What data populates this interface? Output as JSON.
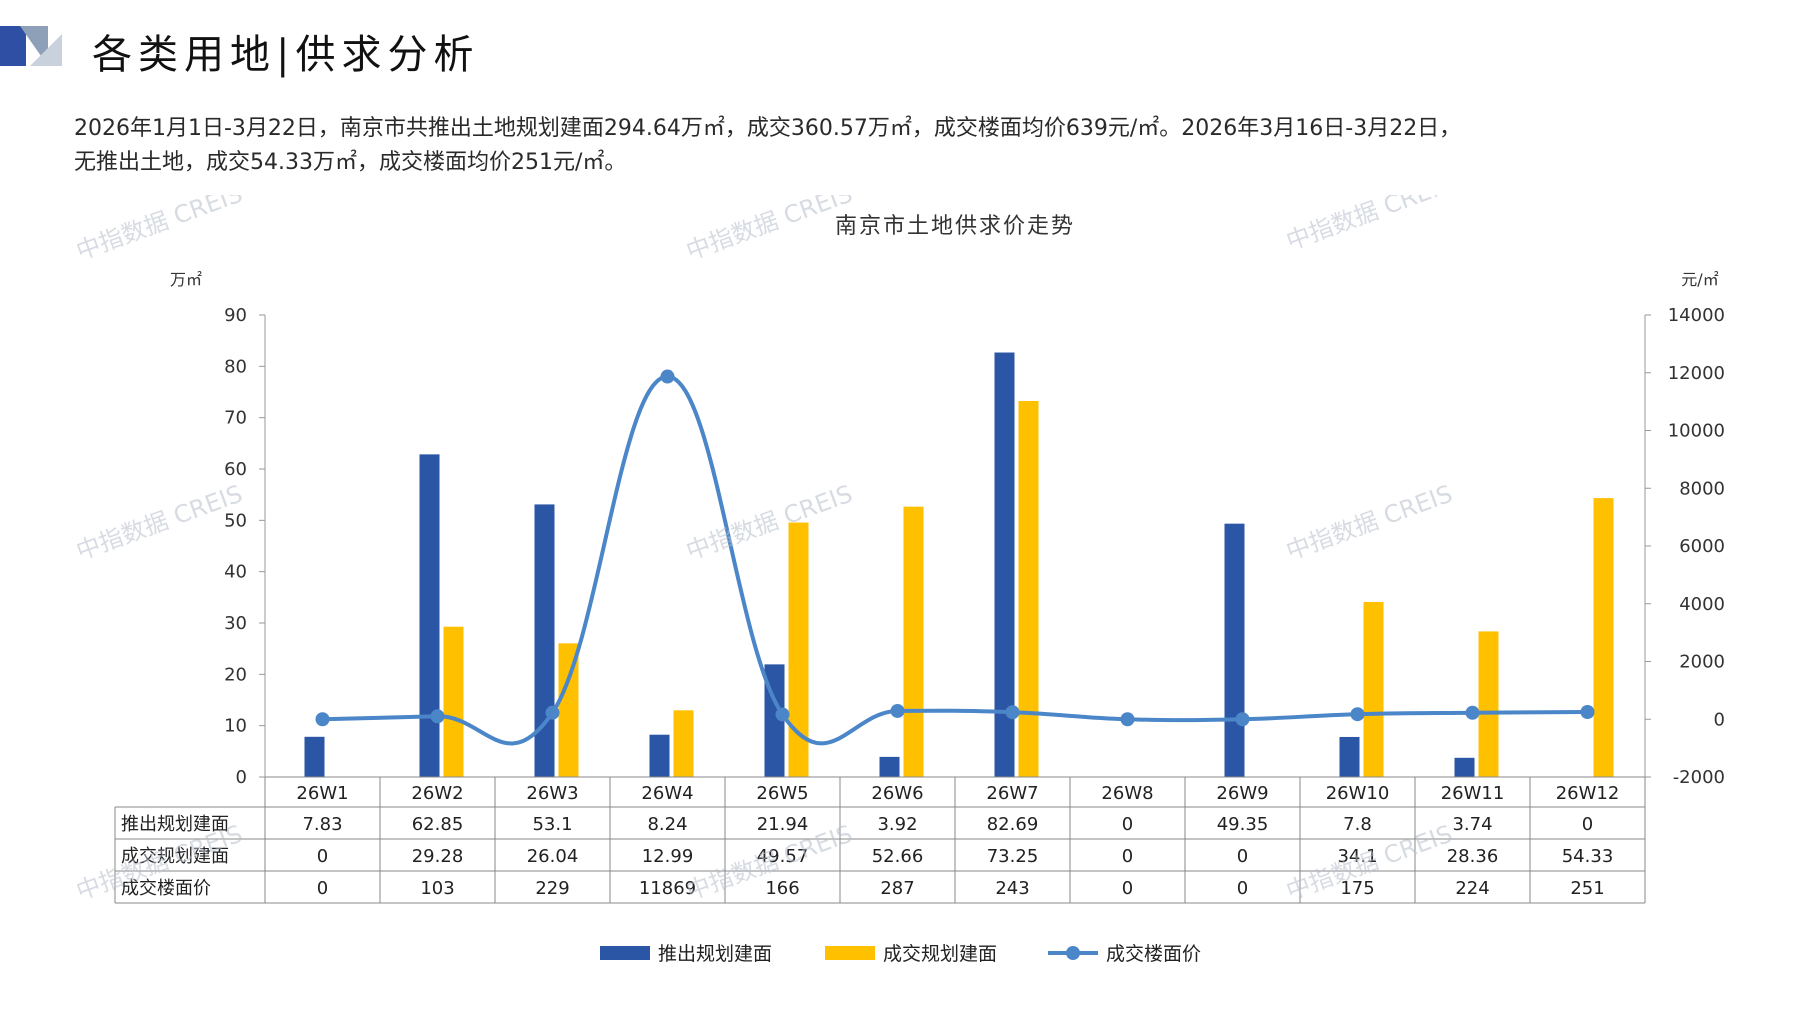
{
  "page": {
    "title": "各类用地|供求分析",
    "summary_line1": "2026年1月1日-3月22日，南京市共推出土地规划建面294.64万㎡，成交360.57万㎡，成交楼面均价639元/㎡。2026年3月16日-3月22日，",
    "summary_line2": "无推出土地，成交54.33万㎡，成交楼面均价251元/㎡。",
    "watermark": "中指数据 CREIS"
  },
  "colors": {
    "supply": "#2B55A5",
    "deal": "#FFC000",
    "price": "#4A86C8",
    "accent": "#2E4FA3"
  },
  "chart_data": {
    "type": "bar",
    "title": "南京市土地供求价走势",
    "ylabel_left": "万㎡",
    "ylabel_right": "元/㎡",
    "ylim_left": [
      0,
      90
    ],
    "yticks_left": [
      0,
      10,
      20,
      30,
      40,
      50,
      60,
      70,
      80,
      90
    ],
    "ylim_right": [
      -2000,
      14000
    ],
    "yticks_right": [
      -2000,
      0,
      2000,
      4000,
      6000,
      8000,
      10000,
      12000,
      14000
    ],
    "categories": [
      "26W1",
      "26W2",
      "26W3",
      "26W4",
      "26W5",
      "26W6",
      "26W7",
      "26W8",
      "26W9",
      "26W10",
      "26W11",
      "26W12"
    ],
    "series": [
      {
        "name": "推出规划建面",
        "kind": "bar",
        "axis": "left",
        "values": [
          7.83,
          62.85,
          53.1,
          8.24,
          21.94,
          3.92,
          82.69,
          0,
          49.35,
          7.8,
          3.74,
          0
        ],
        "labels": [
          "7.83",
          "62.85",
          "53.1",
          "8.24",
          "21.94",
          "3.92",
          "82.69",
          "0",
          "49.35",
          "7.8",
          "3.74",
          "0"
        ]
      },
      {
        "name": "成交规划建面",
        "kind": "bar",
        "axis": "left",
        "values": [
          0,
          29.28,
          26.04,
          12.99,
          49.57,
          52.66,
          73.25,
          0,
          0,
          34.1,
          28.36,
          54.33
        ],
        "labels": [
          "0",
          "29.28",
          "26.04",
          "12.99",
          "49.57",
          "52.66",
          "73.25",
          "0",
          "0",
          "34.1",
          "28.36",
          "54.33"
        ]
      },
      {
        "name": "成交楼面价",
        "kind": "line",
        "axis": "right",
        "values": [
          0,
          103,
          229,
          11869,
          166,
          287,
          243,
          0,
          0,
          175,
          224,
          251
        ],
        "labels": [
          "0",
          "103",
          "229",
          "11869",
          "166",
          "287",
          "243",
          "0",
          "0",
          "175",
          "224",
          "251"
        ]
      }
    ],
    "grid": false,
    "legend_position": "bottom"
  }
}
